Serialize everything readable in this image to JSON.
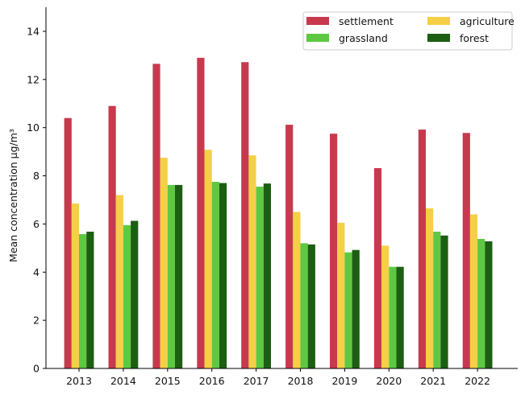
{
  "chart_data": {
    "type": "bar",
    "title": "",
    "xlabel": "",
    "ylabel": "Mean concentration µg/m³",
    "ylim": [
      0,
      15
    ],
    "yticks": [
      0,
      2,
      4,
      6,
      8,
      10,
      12,
      14
    ],
    "categories": [
      "2013",
      "2014",
      "2015",
      "2016",
      "2017",
      "2018",
      "2019",
      "2020",
      "2021",
      "2022"
    ],
    "series": [
      {
        "name": "settlement",
        "color": "#c73a4e",
        "values": [
          10.4,
          10.9,
          12.65,
          12.9,
          12.72,
          10.12,
          9.75,
          8.32,
          9.92,
          9.78
        ]
      },
      {
        "name": "agriculture",
        "color": "#f5d046",
        "values": [
          6.85,
          7.2,
          8.75,
          9.08,
          8.85,
          6.5,
          6.05,
          5.1,
          6.65,
          6.4
        ]
      },
      {
        "name": "grassland",
        "color": "#5ec843",
        "values": [
          5.58,
          5.95,
          7.62,
          7.75,
          7.55,
          5.2,
          4.82,
          4.22,
          5.68,
          5.38
        ]
      },
      {
        "name": "forest",
        "color": "#1c5e12",
        "values": [
          5.68,
          6.13,
          7.62,
          7.7,
          7.68,
          5.15,
          4.92,
          4.22,
          5.52,
          5.28
        ]
      }
    ],
    "legend": {
      "placement": "top-right",
      "columns": 2
    },
    "grid": false
  }
}
